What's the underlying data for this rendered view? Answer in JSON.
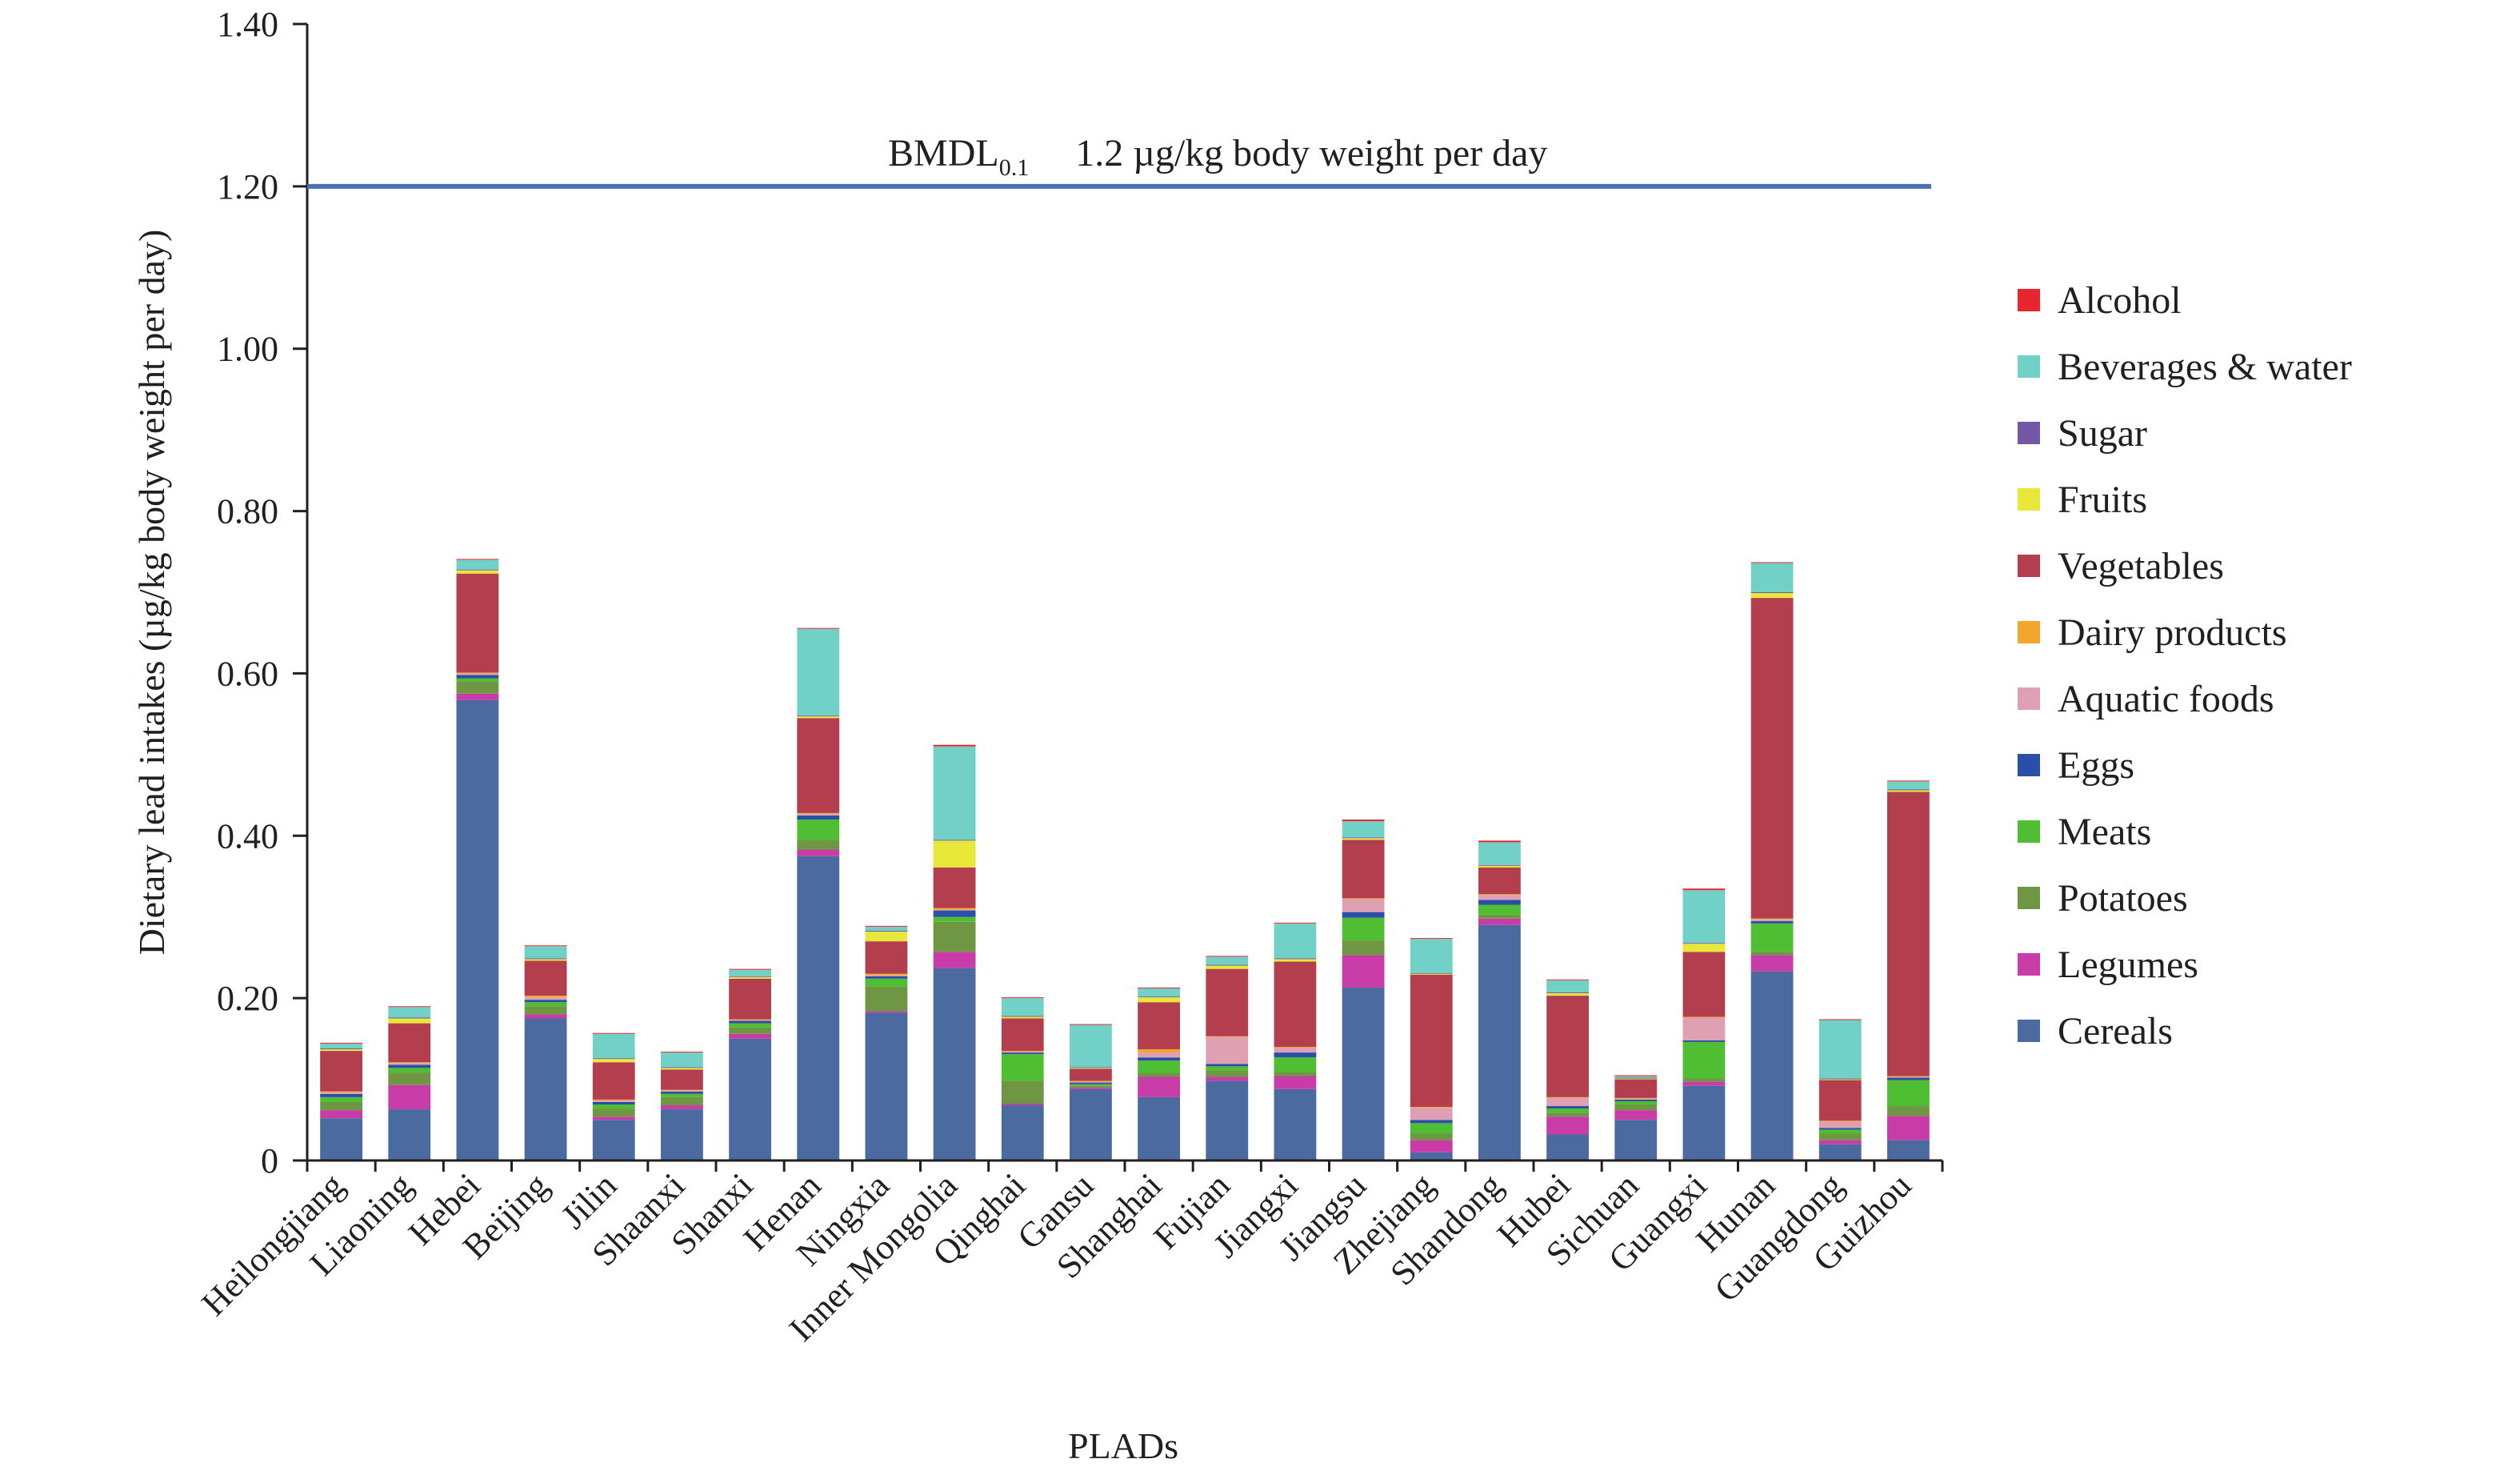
{
  "chart_data": {
    "type": "bar",
    "stacked": true,
    "title": "",
    "xlabel": "PLADs",
    "ylabel": "Dietary lead intakes (µg/kg body weight per day)",
    "ylim": [
      0,
      1.4
    ],
    "yticks": [
      0,
      0.2,
      0.4,
      0.6,
      0.8,
      1.0,
      1.2,
      1.4
    ],
    "ytick_labels": [
      "0",
      "0.20",
      "0.40",
      "0.60",
      "0.80",
      "1.00",
      "1.20",
      "1.40"
    ],
    "grid": false,
    "legend_position": "right",
    "categories": [
      "Heilongjiang",
      "Liaoning",
      "Hebei",
      "Beijing",
      "Jilin",
      "Shaanxi",
      "Shanxi",
      "Henan",
      "Ningxia",
      "Inner Mongolia",
      "Qinghai",
      "Gansu",
      "Shanghai",
      "Fujian",
      "Jiangxi",
      "Jiangsu",
      "Zhejiang",
      "Shandong",
      "Hubei",
      "Sichuan",
      "Guangxi",
      "Hunan",
      "Guangdong",
      "Guizhou"
    ],
    "reference_line": {
      "value": 1.2,
      "label_main": "BMDL",
      "label_sub": "0.1",
      "label_text": "1.2 µg/kg body weight per day",
      "color": "#4a72b0"
    },
    "series": [
      {
        "name": "Cereals",
        "color": "#4a6aa0",
        "values": [
          0.052,
          0.063,
          0.567,
          0.175,
          0.05,
          0.063,
          0.15,
          0.375,
          0.182,
          0.237,
          0.068,
          0.088,
          0.078,
          0.098,
          0.088,
          0.213,
          0.01,
          0.29,
          0.032,
          0.05,
          0.092,
          0.233,
          0.02,
          0.025
        ]
      },
      {
        "name": "Legumes",
        "color": "#c83ca8",
        "values": [
          0.01,
          0.03,
          0.008,
          0.005,
          0.004,
          0.005,
          0.006,
          0.008,
          0.002,
          0.02,
          0.002,
          0.002,
          0.025,
          0.005,
          0.016,
          0.04,
          0.015,
          0.008,
          0.022,
          0.012,
          0.005,
          0.02,
          0.005,
          0.03
        ]
      },
      {
        "name": "Potatoes",
        "color": "#6e9643",
        "values": [
          0.01,
          0.015,
          0.015,
          0.01,
          0.01,
          0.01,
          0.008,
          0.012,
          0.03,
          0.037,
          0.028,
          0.002,
          0.005,
          0.008,
          0.005,
          0.018,
          0.008,
          0.005,
          0.005,
          0.007,
          0.004,
          0.004,
          0.008,
          0.012
        ]
      },
      {
        "name": "Meats",
        "color": "#4fbe33",
        "values": [
          0.006,
          0.006,
          0.004,
          0.005,
          0.005,
          0.004,
          0.005,
          0.025,
          0.01,
          0.006,
          0.033,
          0.002,
          0.015,
          0.005,
          0.018,
          0.028,
          0.013,
          0.012,
          0.005,
          0.004,
          0.045,
          0.035,
          0.005,
          0.032
        ]
      },
      {
        "name": "Eggs",
        "color": "#2b4fa8",
        "values": [
          0.004,
          0.004,
          0.004,
          0.003,
          0.003,
          0.003,
          0.003,
          0.005,
          0.003,
          0.008,
          0.002,
          0.002,
          0.004,
          0.003,
          0.006,
          0.007,
          0.004,
          0.006,
          0.003,
          0.002,
          0.002,
          0.003,
          0.002,
          0.003
        ]
      },
      {
        "name": "Aquatic foods",
        "color": "#e0a0b3",
        "values": [
          0.002,
          0.002,
          0.002,
          0.003,
          0.002,
          0.001,
          0.001,
          0.002,
          0.001,
          0.001,
          0.001,
          0.001,
          0.006,
          0.033,
          0.006,
          0.016,
          0.015,
          0.006,
          0.01,
          0.001,
          0.028,
          0.002,
          0.008,
          0.001
        ]
      },
      {
        "name": "Dairy products",
        "color": "#f2a72c",
        "values": [
          0.001,
          0.001,
          0.001,
          0.002,
          0.001,
          0.001,
          0.001,
          0.001,
          0.002,
          0.002,
          0.001,
          0.001,
          0.004,
          0.001,
          0.001,
          0.001,
          0.001,
          0.001,
          0.001,
          0.001,
          0.001,
          0.001,
          0.001,
          0.001
        ]
      },
      {
        "name": "Vegetables",
        "color": "#b33e4e",
        "values": [
          0.05,
          0.048,
          0.122,
          0.043,
          0.046,
          0.025,
          0.05,
          0.117,
          0.04,
          0.05,
          0.04,
          0.015,
          0.058,
          0.083,
          0.105,
          0.072,
          0.163,
          0.033,
          0.125,
          0.023,
          0.08,
          0.395,
          0.05,
          0.35
        ]
      },
      {
        "name": "Fruits",
        "color": "#e8e83a",
        "values": [
          0.002,
          0.006,
          0.004,
          0.002,
          0.004,
          0.002,
          0.002,
          0.002,
          0.012,
          0.033,
          0.002,
          0.001,
          0.006,
          0.004,
          0.003,
          0.002,
          0.001,
          0.002,
          0.003,
          0.001,
          0.01,
          0.006,
          0.001,
          0.002
        ]
      },
      {
        "name": "Sugar",
        "color": "#7356a4",
        "values": [
          0.001,
          0.001,
          0.001,
          0.001,
          0.001,
          0.001,
          0.001,
          0.001,
          0.001,
          0.001,
          0.001,
          0.001,
          0.001,
          0.001,
          0.001,
          0.001,
          0.001,
          0.001,
          0.001,
          0.001,
          0.001,
          0.001,
          0.001,
          0.001
        ]
      },
      {
        "name": "Beverages & water",
        "color": "#72d1c7",
        "values": [
          0.006,
          0.013,
          0.012,
          0.015,
          0.03,
          0.018,
          0.008,
          0.107,
          0.005,
          0.115,
          0.022,
          0.052,
          0.01,
          0.01,
          0.043,
          0.02,
          0.042,
          0.028,
          0.015,
          0.002,
          0.065,
          0.036,
          0.072,
          0.01
        ]
      },
      {
        "name": "Alcohol",
        "color": "#e8252f",
        "values": [
          0.001,
          0.001,
          0.001,
          0.001,
          0.001,
          0.001,
          0.001,
          0.001,
          0.001,
          0.002,
          0.001,
          0.001,
          0.001,
          0.001,
          0.001,
          0.002,
          0.001,
          0.002,
          0.001,
          0.001,
          0.002,
          0.001,
          0.001,
          0.001
        ]
      }
    ]
  }
}
